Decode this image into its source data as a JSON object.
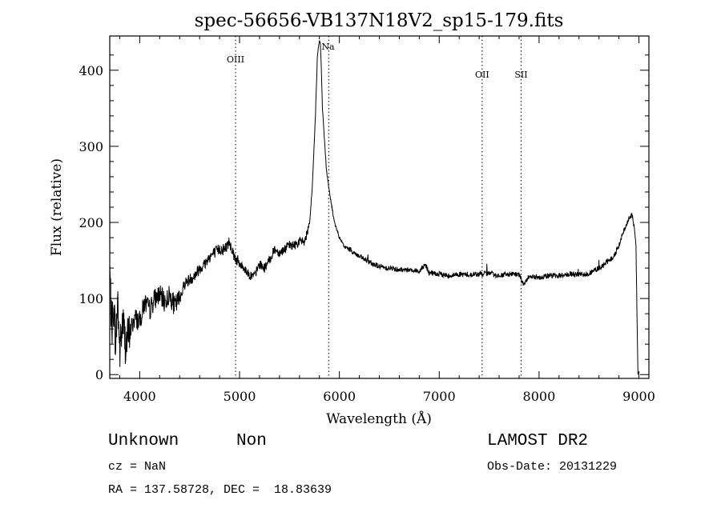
{
  "chart_data": {
    "type": "line",
    "title": "spec-56656-VB137N18V2_sp15-179.fits",
    "xlabel": "Wavelength (Å)",
    "ylabel": "Flux (relative)",
    "xlim": [
      3700,
      9100
    ],
    "ylim": [
      -5,
      445
    ],
    "x_ticks": [
      4000,
      5000,
      6000,
      7000,
      8000,
      9000
    ],
    "x_tick_labels": [
      "4000",
      "5000",
      "6000",
      "7000",
      "8000",
      "9000"
    ],
    "y_ticks": [
      0,
      100,
      200,
      300,
      400
    ],
    "y_tick_labels": [
      "0",
      "100",
      "200",
      "300",
      "400"
    ],
    "grid": false,
    "line_color": "#000000",
    "spectrum": {
      "x": [
        3700,
        3720,
        3740,
        3760,
        3780,
        3800,
        3830,
        3860,
        3900,
        3950,
        4000,
        4050,
        4100,
        4150,
        4200,
        4250,
        4300,
        4350,
        4400,
        4450,
        4500,
        4550,
        4600,
        4650,
        4700,
        4750,
        4800,
        4850,
        4900,
        4950,
        5000,
        5050,
        5100,
        5150,
        5200,
        5250,
        5300,
        5350,
        5400,
        5450,
        5500,
        5550,
        5600,
        5650,
        5700,
        5730,
        5760,
        5780,
        5800,
        5810,
        5820,
        5830,
        5850,
        5870,
        5900,
        5950,
        6000,
        6050,
        6100,
        6150,
        6200,
        6300,
        6400,
        6500,
        6600,
        6700,
        6800,
        6860,
        6900,
        7000,
        7100,
        7200,
        7300,
        7400,
        7500,
        7600,
        7700,
        7800,
        7850,
        7900,
        8000,
        8100,
        8200,
        8300,
        8400,
        8500,
        8600,
        8700,
        8750,
        8800,
        8850,
        8900,
        8930,
        8950,
        8970,
        8990
      ],
      "y": [
        140,
        60,
        90,
        40,
        100,
        30,
        70,
        40,
        55,
        75,
        70,
        95,
        85,
        100,
        105,
        95,
        105,
        90,
        100,
        120,
        125,
        130,
        140,
        145,
        155,
        160,
        165,
        165,
        175,
        155,
        145,
        140,
        130,
        130,
        145,
        140,
        150,
        165,
        160,
        165,
        170,
        170,
        175,
        175,
        195,
        250,
        340,
        420,
        440,
        435,
        400,
        350,
        310,
        270,
        240,
        200,
        180,
        168,
        165,
        160,
        155,
        148,
        142,
        140,
        138,
        138,
        136,
        145,
        133,
        132,
        130,
        132,
        131,
        132,
        133,
        130,
        132,
        131,
        118,
        130,
        128,
        130,
        130,
        132,
        131,
        133,
        140,
        150,
        155,
        170,
        190,
        205,
        210,
        195,
        175,
        0
      ]
    },
    "lines": [
      {
        "label": "OIII",
        "x": 4960
      },
      {
        "label": "Na",
        "x": 5893
      },
      {
        "label": "OII",
        "x": 7430
      },
      {
        "label": "SII",
        "x": 7820
      }
    ],
    "notes": {
      "class": "Unknown",
      "subclass": "Non",
      "survey": "LAMOST DR2",
      "cz": "cz = NaN",
      "obs_date": "Obs-Date: 20131229",
      "radec": "RA = 137.58728, DEC =  18.83639"
    }
  }
}
